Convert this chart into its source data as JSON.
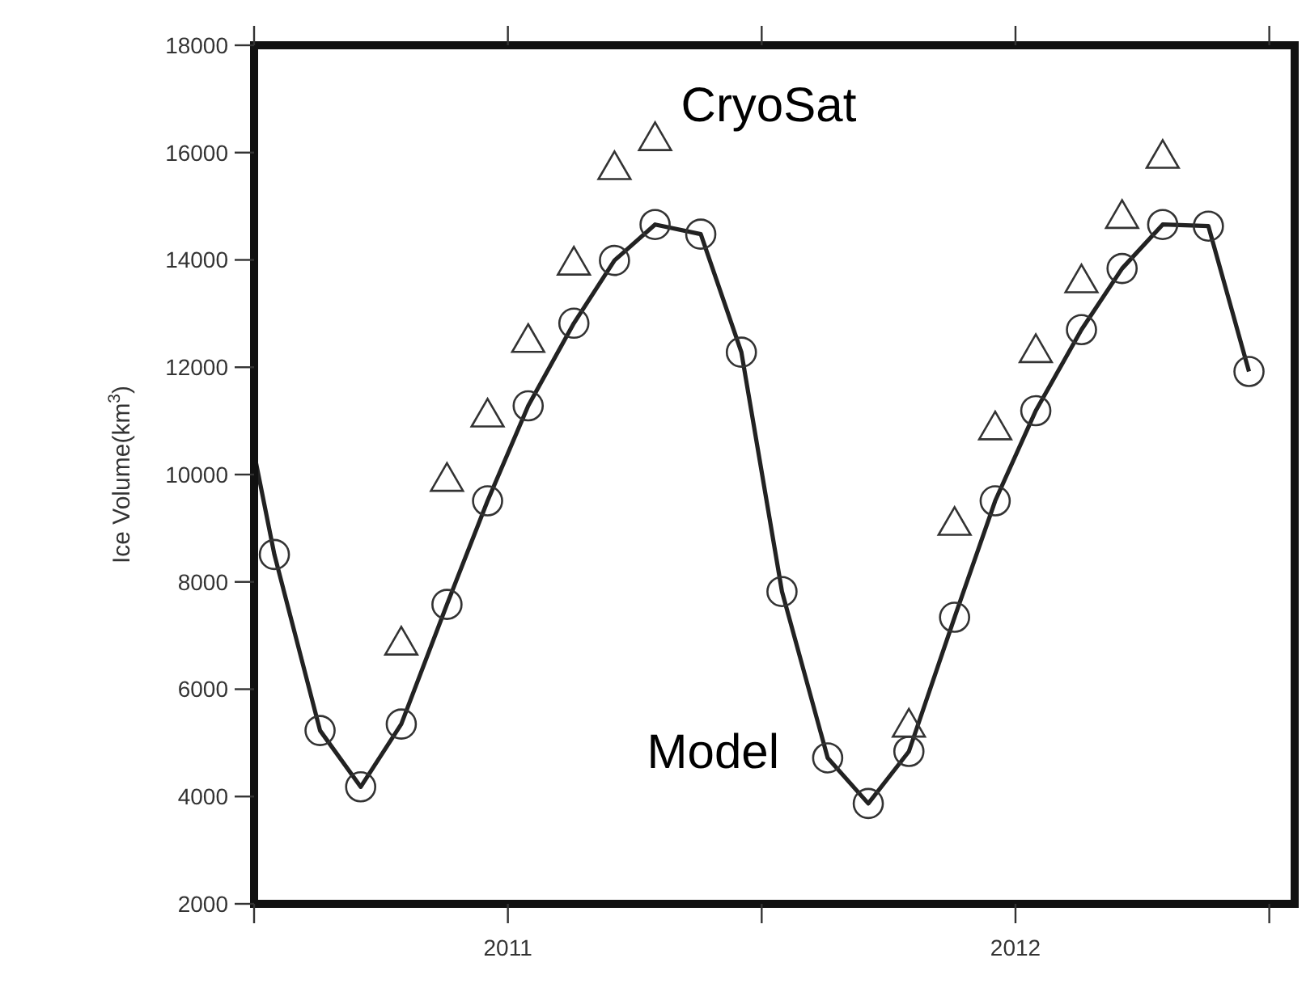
{
  "chart_data": {
    "type": "line",
    "ylabel": "Ice Volume(km$^{3}$)",
    "xlim": [
      2010.5,
      2012.55
    ],
    "xticks": [
      {
        "value": 2010.5,
        "label": null
      },
      2011,
      {
        "value": 2011.5,
        "label": null
      },
      2012,
      {
        "value": 2012.5,
        "label": null
      }
    ],
    "ylim": [
      2000,
      18000
    ],
    "yticks": [
      2000,
      4000,
      6000,
      8000,
      10000,
      12000,
      14000,
      16000,
      18000
    ],
    "grid": false,
    "series": [
      {
        "marker": "none",
        "color": "#222222",
        "x": [
          2010.5,
          2010.54,
          2010.63,
          2010.71,
          2010.79,
          2010.88,
          2010.96,
          2011.04,
          2011.13,
          2011.21,
          2011.29,
          2011.38,
          2011.46,
          2011.54,
          2011.63,
          2011.71,
          2011.79,
          2011.88,
          2011.96,
          2012.04,
          2012.13,
          2012.21,
          2012.29,
          2012.38,
          2012.46
        ],
        "values": [
          10400,
          8510,
          5230,
          4180,
          5350,
          7580,
          9510,
          11280,
          12820,
          13990,
          14660,
          14480,
          12280,
          7820,
          4720,
          3870,
          4840,
          7340,
          9510,
          11190,
          12700,
          13840,
          14660,
          14630,
          11920
        ]
      },
      {
        "type": "scatter",
        "name": "Model",
        "marker": "circle",
        "color": "#333333",
        "x": [
          2010.54,
          2010.63,
          2010.71,
          2010.79,
          2010.88,
          2010.96,
          2011.04,
          2011.13,
          2011.21,
          2011.29,
          2011.38,
          2011.46,
          2011.54,
          2011.63,
          2011.71,
          2011.79,
          2011.88,
          2011.96,
          2012.04,
          2012.13,
          2012.21,
          2012.29,
          2012.38,
          2012.46
        ],
        "values": [
          8510,
          5230,
          4180,
          5350,
          7580,
          9510,
          11280,
          12820,
          13990,
          14660,
          14480,
          12280,
          7820,
          4720,
          3870,
          4840,
          7340,
          9510,
          11190,
          12700,
          13840,
          14660,
          14630,
          11920
        ]
      },
      {
        "type": "scatter",
        "name": "CryoSat",
        "marker": "triangle",
        "color": "#333333",
        "x": [
          2010.79,
          2010.88,
          2010.96,
          2011.04,
          2011.13,
          2011.21,
          2011.29,
          2011.79,
          2011.88,
          2011.96,
          2012.04,
          2012.13,
          2012.21,
          2012.29
        ],
        "values": [
          6850,
          9900,
          11100,
          12490,
          13930,
          15710,
          16250,
          5320,
          9080,
          10860,
          12300,
          13600,
          14800,
          15920
        ]
      }
    ]
  }
}
